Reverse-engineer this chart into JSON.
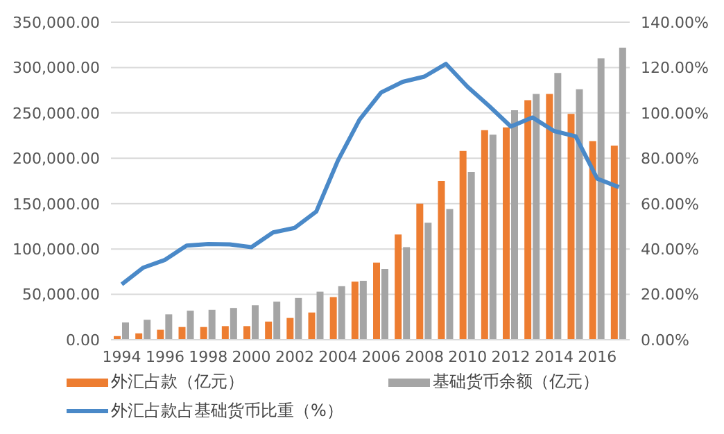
{
  "chart_data": {
    "type": "bar",
    "categories": [
      "1994",
      null,
      "1996",
      null,
      "1998",
      null,
      "2000",
      null,
      "2002",
      null,
      "2004",
      null,
      "2006",
      null,
      "2008",
      null,
      "2010",
      null,
      "2012",
      null,
      "2014",
      null,
      "2016",
      null
    ],
    "series": [
      {
        "name": "外汇占款（亿元）",
        "color": "#ed7d31",
        "values": [
          4000,
          7000,
          11000,
          14000,
          14000,
          15000,
          15000,
          20000,
          24000,
          30000,
          47000,
          64000,
          85000,
          116000,
          150000,
          175000,
          208000,
          231000,
          234000,
          264000,
          271000,
          249000,
          219000,
          214000
        ]
      },
      {
        "name": "基础货币余额（亿元）",
        "color": "#a5a5a5",
        "values": [
          19000,
          22000,
          28000,
          32000,
          33000,
          35000,
          38000,
          42000,
          46000,
          53000,
          59000,
          65000,
          78000,
          102000,
          129000,
          144000,
          185000,
          226000,
          253000,
          271000,
          294000,
          276000,
          310000,
          322000
        ]
      },
      {
        "name": "外汇占款占基础货币比重（%）",
        "type": "line",
        "axis": "y2",
        "color": "#4a89c8",
        "values": [
          24.4,
          31.8,
          35.2,
          41.5,
          42.2,
          42.0,
          40.8,
          47.3,
          49.3,
          56.5,
          79,
          97,
          109,
          113.7,
          116,
          121.6,
          111.5,
          103,
          94,
          98,
          92,
          89.7,
          71,
          67.3
        ]
      }
    ],
    "ylim": [
      0,
      350000
    ],
    "yticks": [
      {
        "value": 0,
        "label": "0.00"
      },
      {
        "value": 50000,
        "label": "50,000.00"
      },
      {
        "value": 100000,
        "label": "100,000.00"
      },
      {
        "value": 150000,
        "label": "150,000.00"
      },
      {
        "value": 200000,
        "label": "200,000.00"
      },
      {
        "value": 250000,
        "label": "250,000.00"
      },
      {
        "value": 300000,
        "label": "300,000.00"
      },
      {
        "value": 350000,
        "label": "350,000.00"
      }
    ],
    "y2lim": [
      0,
      140
    ],
    "y2ticks": [
      {
        "value": 0,
        "label": "0.00%"
      },
      {
        "value": 20,
        "label": "20.00%"
      },
      {
        "value": 40,
        "label": "40.00%"
      },
      {
        "value": 60,
        "label": "60.00%"
      },
      {
        "value": 80,
        "label": "80.00%"
      },
      {
        "value": 100,
        "label": "100.00%"
      },
      {
        "value": 120,
        "label": "120.00%"
      },
      {
        "value": 140,
        "label": "140.00%"
      }
    ],
    "grid": "y",
    "legend": "bottom",
    "marker": "none",
    "line_style": "solid"
  }
}
